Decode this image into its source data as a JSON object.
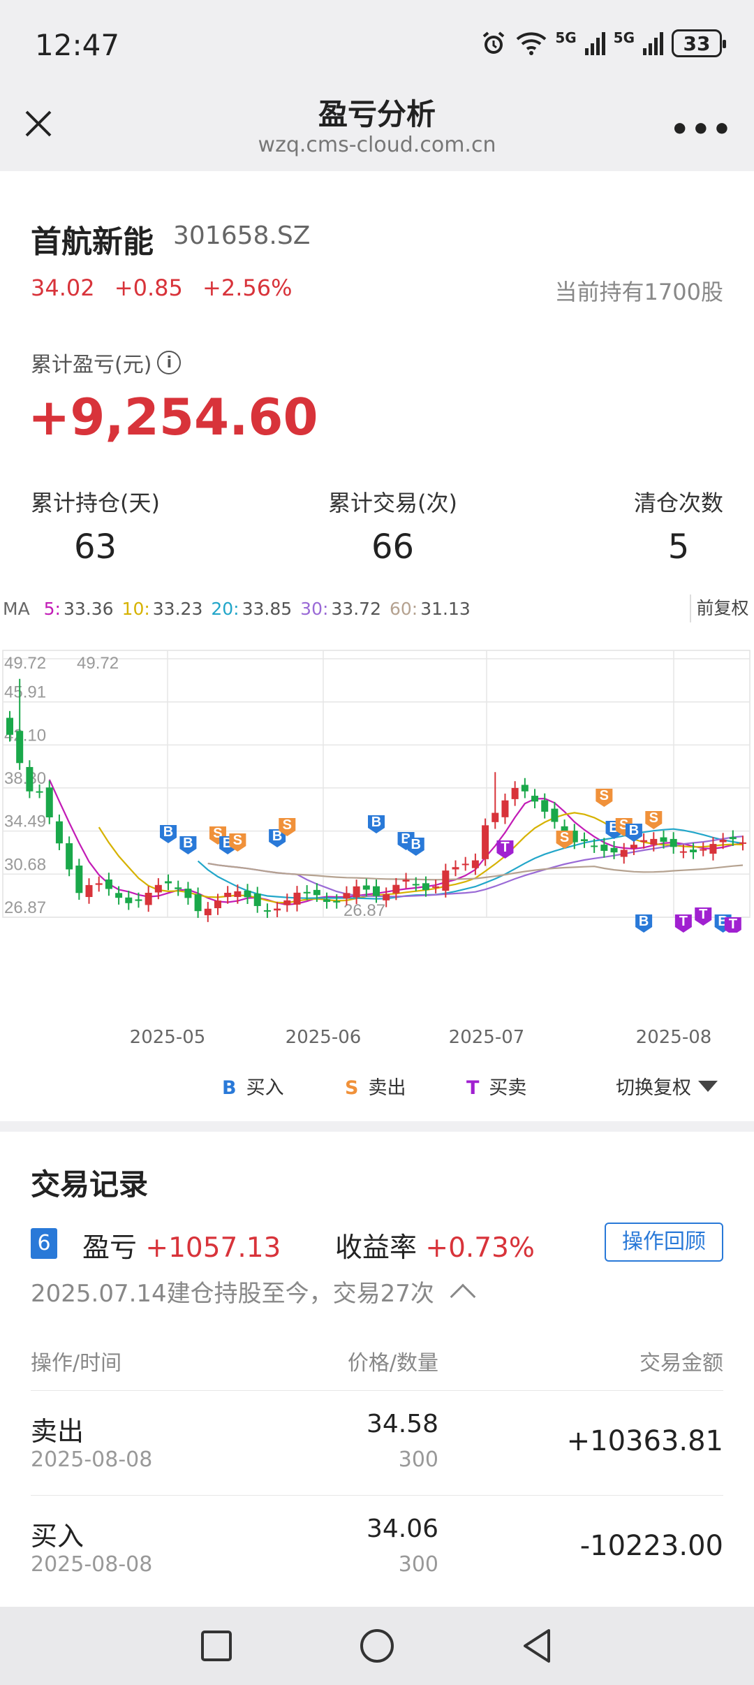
{
  "status_bar": {
    "time": "12:47",
    "net1": "5G",
    "net2": "5G",
    "battery": "33"
  },
  "nav": {
    "title": "盈亏分析",
    "url": "wzq.cms-cloud.com.cn",
    "more": "•••"
  },
  "stock": {
    "name": "首航新能",
    "code": "301658.SZ",
    "price": "34.02",
    "change": "+0.85",
    "change_pct": "+2.56%",
    "holding": "当前持有1700股"
  },
  "pnl": {
    "label": "累计盈亏(元)",
    "info": "i",
    "value": "+9,254.60"
  },
  "stats": [
    {
      "label": "累计持仓(天)",
      "value": "63"
    },
    {
      "label": "累计交易(次)",
      "value": "66"
    },
    {
      "label": "清仓次数",
      "value": "5"
    }
  ],
  "ma": {
    "prefix": "MA",
    "items": [
      {
        "k": "5:",
        "v": "33.36",
        "color": "#c21bb6"
      },
      {
        "k": "10:",
        "v": "33.23",
        "color": "#d6b200"
      },
      {
        "k": "20:",
        "v": "33.85",
        "color": "#22a6c9"
      },
      {
        "k": "30:",
        "v": "33.72",
        "color": "#9a6ad6"
      },
      {
        "k": "60:",
        "v": "31.13",
        "color": "#b5a290"
      }
    ],
    "fq_button": "前复权"
  },
  "chart_data": {
    "type": "candlestick",
    "y_ticks": [
      "49.72",
      "45.91",
      "42.10",
      "38.30",
      "34.49",
      "30.68",
      "26.87"
    ],
    "ylim": [
      26.87,
      49.72
    ],
    "max_label": "49.72",
    "min_label": "26.87",
    "x_labels": [
      "2025-05",
      "2025-06",
      "2025-07",
      "2025-08"
    ],
    "legend_colors": {
      "buy": "#2979d8",
      "sell": "#f0913a",
      "both": "#a020d0"
    }
  },
  "legend": {
    "buy": {
      "mark": "B",
      "label": "买入"
    },
    "sell": {
      "mark": "S",
      "label": "卖出"
    },
    "both": {
      "mark": "T",
      "label": "买卖"
    },
    "switch": "切换复权"
  },
  "trade": {
    "title": "交易记录",
    "badge": "6",
    "pnl_label": "盈亏",
    "pnl_value": "+1057.13",
    "rate_label": "收益率",
    "rate_value": "+0.73%",
    "review_button": "操作回顾",
    "summary": "2025.07.14建仓持股至今，交易27次",
    "headers": [
      "操作/时间",
      "价格/数量",
      "交易金额"
    ],
    "rows": [
      {
        "op": "卖出",
        "date": "2025-08-08",
        "price": "34.58",
        "qty": "300",
        "amount": "+10363.81"
      },
      {
        "op": "买入",
        "date": "2025-08-08",
        "price": "34.06",
        "qty": "300",
        "amount": "-10223.00"
      }
    ]
  }
}
